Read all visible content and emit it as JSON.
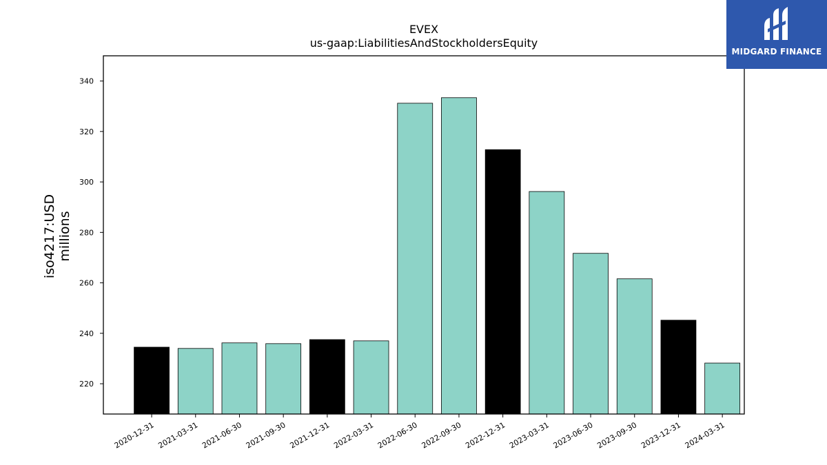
{
  "chart_data": {
    "type": "bar",
    "title": "EVEX",
    "subtitle": "us-gaap:LiabilitiesAndStockholdersEquity",
    "ylabel": "iso4217:USD",
    "ylabel_unit": "millions",
    "categories": [
      "2020-12-31",
      "2021-03-31",
      "2021-06-30",
      "2021-09-30",
      "2021-12-31",
      "2022-03-31",
      "2022-06-30",
      "2022-09-30",
      "2022-12-31",
      "2023-03-31",
      "2023-06-30",
      "2023-09-30",
      "2023-12-31",
      "2024-03-31"
    ],
    "values": [
      234.5,
      234.0,
      236.2,
      235.9,
      237.5,
      237.0,
      331.2,
      333.4,
      312.8,
      296.2,
      271.7,
      261.6,
      245.2,
      228.2
    ],
    "bar_colors": [
      "#000000",
      "#8dd3c7",
      "#8dd3c7",
      "#8dd3c7",
      "#000000",
      "#8dd3c7",
      "#8dd3c7",
      "#8dd3c7",
      "#000000",
      "#8dd3c7",
      "#8dd3c7",
      "#8dd3c7",
      "#000000",
      "#8dd3c7"
    ],
    "ylim": [
      208,
      350
    ],
    "yticks": [
      220,
      240,
      260,
      280,
      300,
      320,
      340
    ],
    "grid": false,
    "legend": "none"
  },
  "logo": {
    "text": "MIDGARD FINANCE",
    "background": "#2e58ad"
  }
}
